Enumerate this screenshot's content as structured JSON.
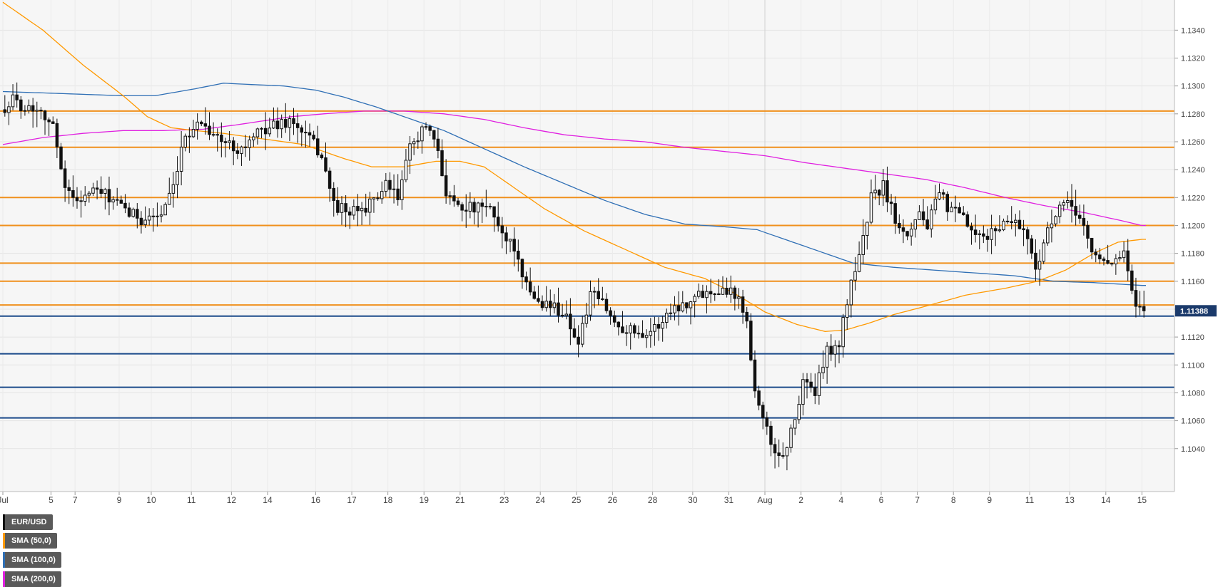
{
  "chart_data": {
    "type": "candlestick",
    "symbol": "EUR/USD",
    "legend": [
      {
        "label": "EUR/USD",
        "color": "#111111"
      },
      {
        "label": "SMA (50,0)",
        "color": "#ff9900"
      },
      {
        "label": "SMA (100,0)",
        "color": "#2f6fb5"
      },
      {
        "label": "SMA (200,0)",
        "color": "#e020e0"
      }
    ],
    "ylim": [
      1.1022,
      1.1356
    ],
    "y_ticks": [
      "1.1040",
      "1.1060",
      "1.1080",
      "1.1100",
      "1.1120",
      "1.1140",
      "1.1160",
      "1.1180",
      "1.1200",
      "1.1220",
      "1.1240",
      "1.1260",
      "1.1280",
      "1.1300",
      "1.1320",
      "1.1340"
    ],
    "x_ticks": [
      {
        "label": "Jul",
        "bar": 0
      },
      {
        "label": "5",
        "bar": 12
      },
      {
        "label": "7",
        "bar": 18
      },
      {
        "label": "9",
        "bar": 29
      },
      {
        "label": "10",
        "bar": 37
      },
      {
        "label": "11",
        "bar": 47
      },
      {
        "label": "12",
        "bar": 57
      },
      {
        "label": "14",
        "bar": 66
      },
      {
        "label": "16",
        "bar": 78
      },
      {
        "label": "17",
        "bar": 87
      },
      {
        "label": "18",
        "bar": 96
      },
      {
        "label": "19",
        "bar": 105
      },
      {
        "label": "21",
        "bar": 114
      },
      {
        "label": "23",
        "bar": 125
      },
      {
        "label": "24",
        "bar": 134
      },
      {
        "label": "25",
        "bar": 143
      },
      {
        "label": "26",
        "bar": 152
      },
      {
        "label": "28",
        "bar": 162
      },
      {
        "label": "30",
        "bar": 172
      },
      {
        "label": "31",
        "bar": 181
      },
      {
        "label": "Aug",
        "bar": 190
      },
      {
        "label": "2",
        "bar": 199
      },
      {
        "label": "4",
        "bar": 209
      },
      {
        "label": "6",
        "bar": 219
      },
      {
        "label": "7",
        "bar": 228
      },
      {
        "label": "8",
        "bar": 237
      },
      {
        "label": "9",
        "bar": 246
      },
      {
        "label": "11",
        "bar": 256
      },
      {
        "label": "13",
        "bar": 266
      },
      {
        "label": "14",
        "bar": 275
      },
      {
        "label": "15",
        "bar": 284
      }
    ],
    "month_separator_bar": 190,
    "resistance_levels": [
      1.1282,
      1.1256,
      1.122,
      1.12,
      1.1173,
      1.116,
      1.1143
    ],
    "support_levels": [
      1.1135,
      1.1108,
      1.1084,
      1.1062
    ],
    "current_price": "1.11388",
    "current_value": 1.11388,
    "waypoints": [
      [
        0,
        1.1283
      ],
      [
        3,
        1.129
      ],
      [
        6,
        1.1285
      ],
      [
        10,
        1.1284
      ],
      [
        13,
        1.127
      ],
      [
        16,
        1.123
      ],
      [
        18,
        1.1218
      ],
      [
        24,
        1.1225
      ],
      [
        27,
        1.122
      ],
      [
        31,
        1.121
      ],
      [
        35,
        1.1205
      ],
      [
        40,
        1.1208
      ],
      [
        43,
        1.1225
      ],
      [
        46,
        1.1265
      ],
      [
        50,
        1.1275
      ],
      [
        55,
        1.126
      ],
      [
        60,
        1.1255
      ],
      [
        66,
        1.127
      ],
      [
        72,
        1.1275
      ],
      [
        77,
        1.1262
      ],
      [
        80,
        1.125
      ],
      [
        83,
        1.1215
      ],
      [
        87,
        1.1208
      ],
      [
        92,
        1.1215
      ],
      [
        96,
        1.1228
      ],
      [
        99,
        1.122
      ],
      [
        102,
        1.1255
      ],
      [
        105,
        1.127
      ],
      [
        108,
        1.1262
      ],
      [
        111,
        1.1225
      ],
      [
        114,
        1.1215
      ],
      [
        118,
        1.1212
      ],
      [
        122,
        1.1212
      ],
      [
        125,
        1.1195
      ],
      [
        128,
        1.1185
      ],
      [
        130,
        1.116
      ],
      [
        134,
        1.1145
      ],
      [
        138,
        1.1142
      ],
      [
        141,
        1.1135
      ],
      [
        144,
        1.1115
      ],
      [
        147,
        1.115
      ],
      [
        150,
        1.1145
      ],
      [
        153,
        1.113
      ],
      [
        157,
        1.1125
      ],
      [
        161,
        1.1123
      ],
      [
        164,
        1.1128
      ],
      [
        167,
        1.114
      ],
      [
        171,
        1.1145
      ],
      [
        175,
        1.1152
      ],
      [
        179,
        1.1155
      ],
      [
        183,
        1.1152
      ],
      [
        186,
        1.1135
      ],
      [
        188,
        1.108
      ],
      [
        190,
        1.1065
      ],
      [
        192,
        1.104
      ],
      [
        195,
        1.1035
      ],
      [
        198,
        1.106
      ],
      [
        200,
        1.109
      ],
      [
        203,
        1.108
      ],
      [
        206,
        1.111
      ],
      [
        209,
        1.1115
      ],
      [
        212,
        1.116
      ],
      [
        215,
        1.119
      ],
      [
        217,
        1.122
      ],
      [
        220,
        1.1228
      ],
      [
        223,
        1.1205
      ],
      [
        226,
        1.1195
      ],
      [
        229,
        1.121
      ],
      [
        231,
        1.12
      ],
      [
        234,
        1.1222
      ],
      [
        237,
        1.121
      ],
      [
        240,
        1.1205
      ],
      [
        243,
        1.119
      ],
      [
        246,
        1.1192
      ],
      [
        249,
        1.12
      ],
      [
        252,
        1.1205
      ],
      [
        255,
        1.1198
      ],
      [
        258,
        1.117
      ],
      [
        261,
        1.1195
      ],
      [
        264,
        1.1212
      ],
      [
        267,
        1.1215
      ],
      [
        270,
        1.12
      ],
      [
        272,
        1.118
      ],
      [
        275,
        1.1175
      ],
      [
        278,
        1.1175
      ],
      [
        280,
        1.118
      ],
      [
        281,
        1.1165
      ],
      [
        283,
        1.114
      ],
      [
        285,
        1.1139
      ]
    ],
    "sma50": [
      [
        0,
        1.136
      ],
      [
        10,
        1.134
      ],
      [
        20,
        1.1315
      ],
      [
        30,
        1.1293
      ],
      [
        36,
        1.1278
      ],
      [
        42,
        1.127
      ],
      [
        48,
        1.1268
      ],
      [
        55,
        1.1266
      ],
      [
        65,
        1.1262
      ],
      [
        75,
        1.1258
      ],
      [
        85,
        1.1248
      ],
      [
        92,
        1.1242
      ],
      [
        100,
        1.1242
      ],
      [
        108,
        1.1246
      ],
      [
        114,
        1.1246
      ],
      [
        120,
        1.1242
      ],
      [
        127,
        1.1228
      ],
      [
        135,
        1.1212
      ],
      [
        145,
        1.1196
      ],
      [
        155,
        1.1183
      ],
      [
        165,
        1.117
      ],
      [
        175,
        1.1162
      ],
      [
        182,
        1.1152
      ],
      [
        190,
        1.1138
      ],
      [
        198,
        1.1129
      ],
      [
        205,
        1.1124
      ],
      [
        210,
        1.1125
      ],
      [
        216,
        1.113
      ],
      [
        222,
        1.1136
      ],
      [
        230,
        1.1142
      ],
      [
        240,
        1.115
      ],
      [
        250,
        1.1155
      ],
      [
        258,
        1.116
      ],
      [
        265,
        1.1168
      ],
      [
        272,
        1.118
      ],
      [
        278,
        1.1188
      ],
      [
        284,
        1.119
      ]
    ],
    "sma100": [
      [
        0,
        1.1296
      ],
      [
        10,
        1.1295
      ],
      [
        20,
        1.1294
      ],
      [
        30,
        1.1293
      ],
      [
        38,
        1.1293
      ],
      [
        48,
        1.1298
      ],
      [
        55,
        1.1302
      ],
      [
        62,
        1.1301
      ],
      [
        70,
        1.13
      ],
      [
        78,
        1.1297
      ],
      [
        85,
        1.1292
      ],
      [
        93,
        1.1285
      ],
      [
        100,
        1.1278
      ],
      [
        110,
        1.1268
      ],
      [
        120,
        1.1255
      ],
      [
        130,
        1.1242
      ],
      [
        140,
        1.123
      ],
      [
        150,
        1.1218
      ],
      [
        160,
        1.1208
      ],
      [
        170,
        1.1201
      ],
      [
        180,
        1.1199
      ],
      [
        188,
        1.1197
      ],
      [
        195,
        1.119
      ],
      [
        203,
        1.1182
      ],
      [
        212,
        1.1173
      ],
      [
        222,
        1.117
      ],
      [
        232,
        1.1168
      ],
      [
        242,
        1.1166
      ],
      [
        252,
        1.1164
      ],
      [
        262,
        1.116
      ],
      [
        272,
        1.1159
      ],
      [
        284,
        1.1157
      ]
    ],
    "sma200": [
      [
        0,
        1.1258
      ],
      [
        10,
        1.1263
      ],
      [
        20,
        1.1266
      ],
      [
        30,
        1.1268
      ],
      [
        40,
        1.1268
      ],
      [
        50,
        1.1269
      ],
      [
        58,
        1.1272
      ],
      [
        65,
        1.1275
      ],
      [
        72,
        1.1278
      ],
      [
        80,
        1.128
      ],
      [
        90,
        1.1282
      ],
      [
        100,
        1.1282
      ],
      [
        110,
        1.128
      ],
      [
        120,
        1.1276
      ],
      [
        130,
        1.127
      ],
      [
        140,
        1.1265
      ],
      [
        150,
        1.1262
      ],
      [
        160,
        1.126
      ],
      [
        170,
        1.1256
      ],
      [
        180,
        1.1253
      ],
      [
        190,
        1.125
      ],
      [
        200,
        1.1245
      ],
      [
        210,
        1.1241
      ],
      [
        220,
        1.1237
      ],
      [
        230,
        1.1233
      ],
      [
        240,
        1.1227
      ],
      [
        250,
        1.122
      ],
      [
        260,
        1.1214
      ],
      [
        270,
        1.1209
      ],
      [
        278,
        1.1204
      ],
      [
        284,
        1.12
      ]
    ]
  }
}
